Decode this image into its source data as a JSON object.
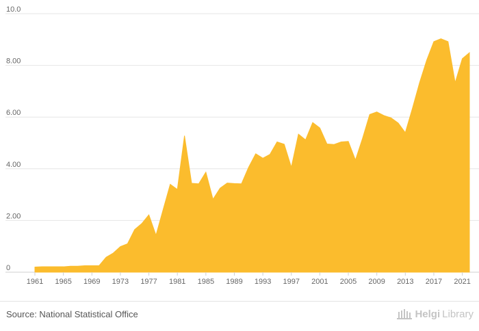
{
  "chart_data": {
    "type": "area",
    "title": "",
    "xlabel": "",
    "ylabel": "",
    "color": "#fbbc2d",
    "grid": true,
    "ylim": [
      0,
      10
    ],
    "yticks": [
      "0",
      "2.00",
      "4.00",
      "6.00",
      "8.00",
      "10.0"
    ],
    "xticks": [
      "1961",
      "1965",
      "1969",
      "1973",
      "1977",
      "1981",
      "1985",
      "1989",
      "1993",
      "1997",
      "2001",
      "2005",
      "2009",
      "2013",
      "2017",
      "2021"
    ],
    "x": [
      1961,
      1962,
      1963,
      1964,
      1965,
      1966,
      1967,
      1968,
      1969,
      1970,
      1971,
      1972,
      1973,
      1974,
      1975,
      1976,
      1977,
      1978,
      1979,
      1980,
      1981,
      1982,
      1983,
      1984,
      1985,
      1986,
      1987,
      1988,
      1989,
      1990,
      1991,
      1992,
      1993,
      1994,
      1995,
      1996,
      1997,
      1998,
      1999,
      2000,
      2001,
      2002,
      2003,
      2004,
      2005,
      2006,
      2007,
      2008,
      2009,
      2010,
      2011,
      2012,
      2013,
      2014,
      2015,
      2016,
      2017,
      2018,
      2019,
      2020,
      2021,
      2022
    ],
    "values": [
      0.2,
      0.21,
      0.21,
      0.21,
      0.21,
      0.23,
      0.23,
      0.25,
      0.25,
      0.25,
      0.58,
      0.74,
      0.99,
      1.1,
      1.65,
      1.88,
      2.22,
      1.43,
      2.42,
      3.4,
      3.2,
      5.28,
      3.44,
      3.42,
      3.87,
      2.82,
      3.25,
      3.45,
      3.43,
      3.42,
      4.06,
      4.58,
      4.41,
      4.56,
      5.04,
      4.95,
      4.06,
      5.34,
      5.12,
      5.79,
      5.58,
      4.96,
      4.94,
      5.04,
      5.06,
      4.34,
      5.18,
      6.1,
      6.2,
      6.06,
      5.97,
      5.77,
      5.4,
      6.34,
      7.33,
      8.2,
      8.92,
      9.03,
      8.92,
      7.33,
      8.26,
      8.49
    ]
  },
  "footer": {
    "source": "Source: National Statistical Office",
    "brand_part1": "Helgi",
    "brand_part2": "Library"
  }
}
